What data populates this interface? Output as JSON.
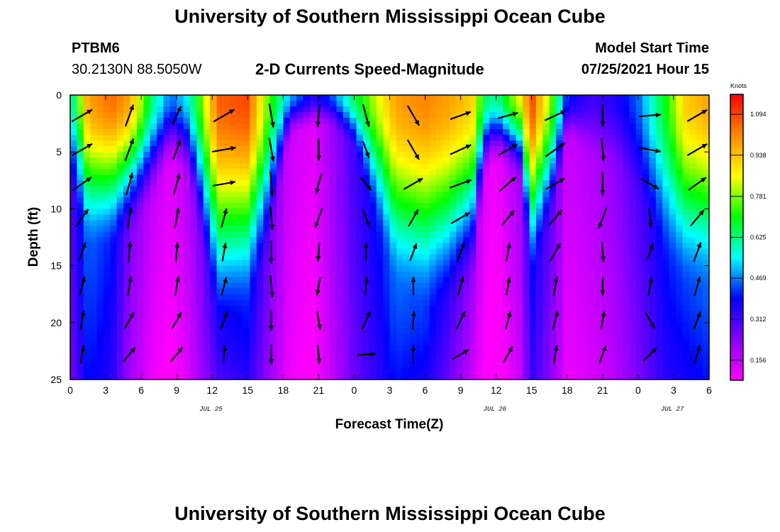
{
  "header": {
    "title": "University of Southern Mississippi Ocean Cube",
    "station_id": "PTBM6",
    "station_coords": "30.2130N  88.5050W",
    "subtitle": "2-D Currents Speed-Magnitude",
    "model_start_label": "Model Start Time",
    "model_start_value": "07/25/2021 Hour 15"
  },
  "footer": {
    "title": "University of Southern Mississippi Ocean Cube"
  },
  "colors": {
    "palette": [
      "#ff00ff",
      "#8800ff",
      "#0000ff",
      "#00ffff",
      "#00ff00",
      "#ffff00",
      "#ff8800",
      "#ff0000"
    ],
    "vector": "#000000"
  },
  "chart_data": {
    "type": "heatmap",
    "title": "2-D Currents Speed-Magnitude",
    "xlabel": "Forecast Time(Z)",
    "ylabel": "Depth (ft)",
    "x_ticks": [
      "0",
      "3",
      "6",
      "9",
      "12",
      "15",
      "18",
      "21",
      "0",
      "3",
      "6",
      "9",
      "12",
      "15",
      "18",
      "21",
      "0",
      "3",
      "6"
    ],
    "x_range_hours": [
      0,
      54
    ],
    "date_labels": [
      {
        "text": "JUL 25",
        "hour": 12
      },
      {
        "text": "JUL 26",
        "hour": 36
      },
      {
        "text": "JUL 27",
        "hour": 51
      }
    ],
    "y_ticks": [
      "0",
      "5",
      "10",
      "15",
      "20",
      "25"
    ],
    "ylim": [
      0,
      25
    ],
    "y_inverted": true,
    "colorbar": {
      "label": "Knots",
      "ticks": [
        "1.094",
        "0.938",
        "0.781",
        "0.625",
        "0.469",
        "0.312",
        "0.156"
      ],
      "range": [
        0.08,
        1.17
      ]
    },
    "speed_profile": {
      "description_units": "knots",
      "hours": [
        0,
        1.5,
        3.5,
        5,
        7,
        8.5,
        10,
        12.5,
        15,
        16.5,
        18.5,
        20.5,
        22,
        24,
        27.5,
        30,
        32,
        34,
        35,
        36,
        38,
        39,
        41,
        42,
        44,
        46,
        48,
        50.5,
        52,
        54
      ],
      "surface": [
        0.55,
        0.98,
        1.05,
        0.98,
        0.62,
        0.45,
        0.55,
        1.06,
        1.09,
        0.8,
        0.5,
        0.35,
        0.42,
        0.65,
        0.98,
        1.02,
        0.98,
        0.92,
        0.65,
        0.6,
        0.85,
        1.09,
        0.7,
        0.4,
        0.32,
        0.35,
        0.45,
        0.72,
        0.92,
        0.98
      ],
      "bottom": [
        0.3,
        0.45,
        0.4,
        0.25,
        0.15,
        0.12,
        0.18,
        0.35,
        0.4,
        0.28,
        0.15,
        0.12,
        0.2,
        0.32,
        0.45,
        0.42,
        0.32,
        0.2,
        0.12,
        0.1,
        0.2,
        0.38,
        0.25,
        0.15,
        0.18,
        0.22,
        0.3,
        0.4,
        0.42,
        0.45
      ],
      "depth_scale": [
        8,
        14,
        14,
        13,
        10,
        6,
        8,
        22,
        20,
        16,
        4,
        3,
        3,
        5,
        18,
        20,
        20,
        18,
        8,
        6,
        8,
        17,
        11,
        4,
        6,
        7,
        10,
        16,
        18,
        18
      ]
    },
    "vector_field": {
      "hours": [
        0,
        4,
        8,
        12,
        16,
        20,
        24,
        28,
        32,
        36,
        40,
        44,
        48,
        52
      ],
      "depths": [
        1,
        4,
        7,
        10,
        13,
        16,
        19,
        22
      ],
      "direction_deg": [
        [
          60,
          20,
          25,
          60,
          170,
          185,
          165,
          150,
          70,
          75,
          65,
          180,
          85,
          60
        ],
        [
          60,
          20,
          20,
          80,
          170,
          180,
          160,
          150,
          65,
          60,
          55,
          175,
          100,
          60
        ],
        [
          55,
          15,
          15,
          80,
          175,
          195,
          140,
          60,
          70,
          50,
          60,
          180,
          120,
          55
        ],
        [
          35,
          10,
          10,
          15,
          175,
          200,
          160,
          30,
          60,
          40,
          40,
          200,
          175,
          40
        ],
        [
          20,
          5,
          5,
          10,
          180,
          185,
          0,
          20,
          20,
          10,
          30,
          175,
          20,
          20
        ],
        [
          15,
          10,
          10,
          15,
          175,
          190,
          5,
          0,
          15,
          10,
          10,
          180,
          10,
          15
        ],
        [
          10,
          30,
          30,
          20,
          180,
          170,
          25,
          5,
          25,
          15,
          15,
          10,
          150,
          20
        ],
        [
          10,
          40,
          40,
          5,
          180,
          175,
          85,
          0,
          60,
          30,
          10,
          20,
          45,
          15
        ]
      ],
      "magnitude": [
        [
          0.95,
          0.9,
          0.7,
          1.0,
          1.0,
          0.9,
          0.9,
          0.9,
          0.8,
          0.7,
          0.9,
          0.8,
          0.8,
          0.9
        ],
        [
          0.95,
          0.95,
          0.75,
          1.0,
          1.0,
          0.8,
          0.4,
          0.9,
          0.9,
          0.8,
          1.0,
          0.9,
          0.8,
          0.9
        ],
        [
          0.9,
          0.9,
          0.75,
          0.9,
          1.0,
          0.7,
          0.4,
          0.8,
          0.9,
          0.8,
          0.8,
          0.9,
          0.7,
          0.8
        ],
        [
          0.8,
          0.8,
          0.7,
          0.6,
          1.0,
          0.7,
          0.5,
          0.6,
          0.8,
          0.6,
          0.7,
          0.8,
          0.6,
          0.7
        ],
        [
          0.7,
          0.7,
          0.6,
          0.5,
          0.9,
          0.5,
          0.5,
          0.5,
          0.7,
          0.5,
          0.7,
          0.6,
          0.5,
          0.7
        ],
        [
          0.6,
          0.6,
          0.6,
          0.5,
          0.8,
          0.5,
          0.5,
          0.5,
          0.6,
          0.5,
          0.6,
          0.5,
          0.5,
          0.6
        ],
        [
          0.6,
          0.5,
          0.5,
          0.5,
          0.7,
          0.5,
          0.6,
          0.5,
          0.6,
          0.5,
          0.6,
          0.5,
          0.5,
          0.5
        ],
        [
          0.5,
          0.5,
          0.5,
          0.5,
          0.6,
          0.5,
          0.5,
          0.5,
          0.5,
          0.5,
          0.5,
          0.5,
          0.5,
          0.5
        ]
      ]
    }
  }
}
